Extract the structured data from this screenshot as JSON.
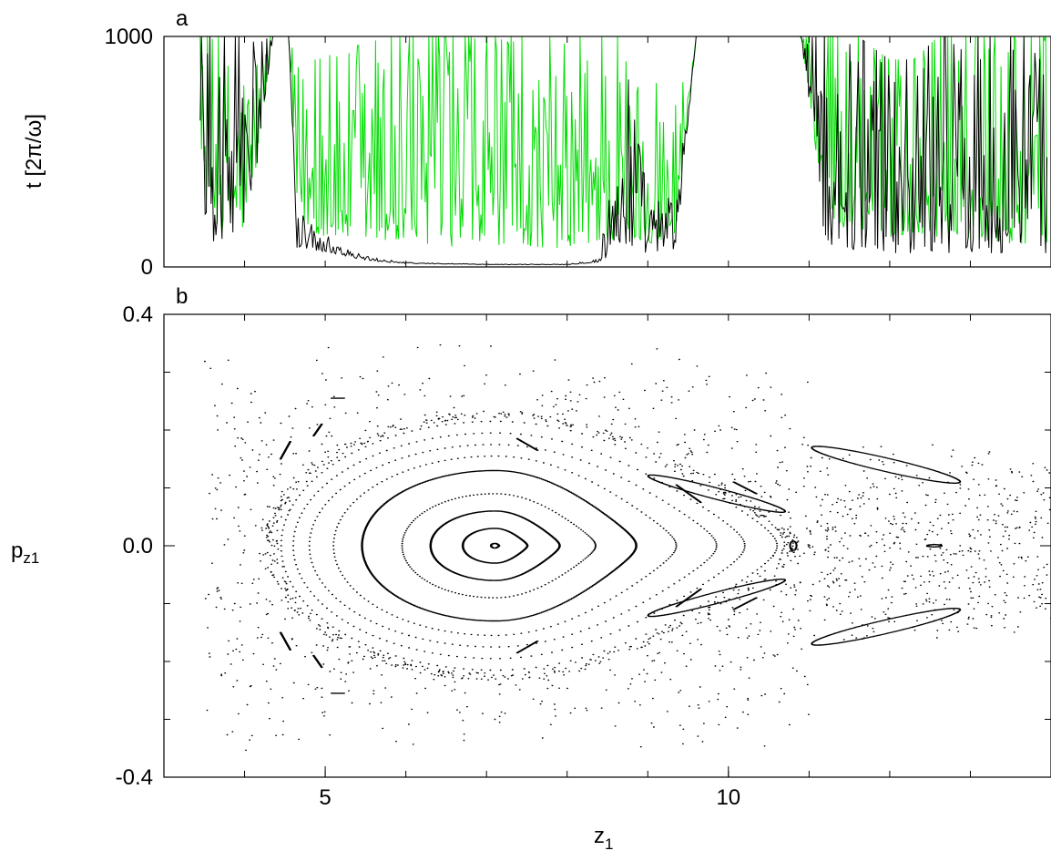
{
  "chart_data": [
    {
      "type": "line",
      "panel_label": "a",
      "title": "",
      "xlabel": "",
      "ylabel": "t [2π/ω]",
      "xlim": [
        3,
        14.0
      ],
      "ylim": [
        0,
        1000
      ],
      "y_ticks": [
        0,
        1000
      ],
      "x_ticks_minor": [
        4,
        5,
        6,
        7,
        8,
        9,
        10,
        11,
        12,
        13
      ],
      "grid": false,
      "legend": "none",
      "series": [
        {
          "color": "#00dd00",
          "envelope": [
            [
              3.45,
              350,
              1000
            ],
            [
              3.7,
              150,
              1000
            ],
            [
              3.9,
              150,
              1000
            ],
            [
              4.05,
              180,
              1000
            ],
            [
              4.35,
              1000,
              1000
            ],
            [
              4.55,
              1000,
              1000
            ],
            [
              4.65,
              220,
              900
            ],
            [
              4.9,
              140,
              900
            ],
            [
              5.3,
              120,
              950
            ],
            [
              5.8,
              100,
              1000
            ],
            [
              6.3,
              100,
              1000
            ],
            [
              6.8,
              80,
              1000
            ],
            [
              7.3,
              100,
              1000
            ],
            [
              7.8,
              80,
              1000
            ],
            [
              8.3,
              100,
              1000
            ],
            [
              8.65,
              120,
              1000
            ],
            [
              8.85,
              120,
              950
            ],
            [
              9.1,
              100,
              800
            ],
            [
              9.35,
              150,
              700
            ],
            [
              9.6,
              1000,
              1000
            ],
            [
              10.9,
              1000,
              1000
            ],
            [
              11.2,
              200,
              1000
            ],
            [
              11.6,
              150,
              1000
            ],
            [
              12.0,
              130,
              900
            ],
            [
              12.3,
              150,
              900
            ],
            [
              12.6,
              130,
              1000
            ],
            [
              13.0,
              120,
              1000
            ],
            [
              13.5,
              100,
              1000
            ],
            [
              13.95,
              100,
              1000
            ]
          ]
        },
        {
          "color": "#000000",
          "envelope": [
            [
              3.45,
              200,
              1000
            ],
            [
              3.7,
              60,
              1000
            ],
            [
              3.9,
              60,
              1000
            ],
            [
              4.05,
              150,
              1000
            ],
            [
              4.35,
              1000,
              1000
            ],
            [
              4.55,
              1000,
              1000
            ],
            [
              4.65,
              80,
              250
            ],
            [
              4.9,
              70,
              160
            ],
            [
              5.1,
              60,
              120
            ],
            [
              5.3,
              40,
              70
            ],
            [
              5.6,
              25,
              40
            ],
            [
              6.0,
              15,
              20
            ],
            [
              7.0,
              10,
              12
            ],
            [
              8.0,
              10,
              12
            ],
            [
              8.4,
              20,
              40
            ],
            [
              8.6,
              60,
              500
            ],
            [
              8.75,
              80,
              1000
            ],
            [
              9.0,
              60,
              300
            ],
            [
              9.35,
              60,
              300
            ],
            [
              9.6,
              1000,
              1000
            ],
            [
              10.9,
              1000,
              1000
            ],
            [
              11.2,
              100,
              1000
            ],
            [
              11.6,
              70,
              1000
            ],
            [
              12.0,
              60,
              900
            ],
            [
              12.3,
              60,
              900
            ],
            [
              12.6,
              60,
              1000
            ],
            [
              13.0,
              60,
              1000
            ],
            [
              13.5,
              60,
              1000
            ],
            [
              13.95,
              60,
              1000
            ]
          ]
        }
      ]
    },
    {
      "type": "scatter",
      "panel_label": "b",
      "title": "",
      "xlabel": "z₁",
      "ylabel": "pz1",
      "ylabel_main": "p",
      "ylabel_sub": "z1",
      "xlabel_main": "z",
      "xlabel_sub": "1",
      "xlim": [
        3,
        14.0
      ],
      "ylim": [
        -0.4,
        0.4
      ],
      "x_ticks": [
        5,
        10
      ],
      "x_ticks_minor": [
        4,
        5,
        6,
        7,
        8,
        9,
        10,
        11,
        12,
        13
      ],
      "y_ticks": [
        -0.4,
        0.0,
        0.4
      ],
      "y_ticks_minor": [
        -0.3,
        -0.2,
        -0.1,
        0.1,
        0.2,
        0.3
      ],
      "y_tick_labels": [
        "-0.4",
        "0.0",
        "0.4"
      ],
      "grid": false,
      "legend": "none",
      "center": [
        7.1,
        0.0
      ],
      "invariant_curves": [
        {
          "a": 0.05,
          "b": 0.05,
          "c": 0.004,
          "style": "solid"
        },
        {
          "a": 0.4,
          "b": 0.4,
          "c": 0.03,
          "style": "solid"
        },
        {
          "a": 0.8,
          "b": 0.8,
          "c": 0.06,
          "style": "solid"
        },
        {
          "a": 1.15,
          "b": 1.25,
          "c": 0.09,
          "style": "dotted"
        },
        {
          "a": 1.65,
          "b": 1.75,
          "c": 0.13,
          "style": "solid"
        },
        {
          "a": 2.0,
          "b": 2.25,
          "c": 0.155,
          "style": "dotted"
        },
        {
          "a": 2.3,
          "b": 2.75,
          "c": 0.175,
          "style": "dotted"
        },
        {
          "a": 2.5,
          "b": 3.1,
          "c": 0.195,
          "style": "dotted"
        },
        {
          "a": 2.65,
          "b": 3.5,
          "c": 0.215,
          "style": "dotted"
        }
      ],
      "small_islands": [
        {
          "x": 10.8,
          "y": 0.0,
          "rx": 0.04,
          "ry": 0.008
        },
        {
          "x": 12.55,
          "y": 0.0,
          "rx": 0.09,
          "ry": 0.002
        }
      ],
      "island_chain_segments": [
        [
          5.15,
          0.255,
          0.15,
          0.0
        ],
        [
          5.15,
          -0.255,
          0.15,
          0.0
        ],
        [
          4.5,
          0.165,
          0.12,
          0.03
        ],
        [
          4.5,
          -0.165,
          0.12,
          -0.03
        ],
        [
          4.9,
          0.2,
          0.1,
          0.02
        ],
        [
          4.9,
          -0.2,
          0.1,
          -0.02
        ],
        [
          7.5,
          0.175,
          0.25,
          -0.02
        ],
        [
          7.5,
          -0.175,
          0.25,
          0.02
        ],
        [
          9.5,
          0.09,
          0.3,
          -0.03
        ],
        [
          9.5,
          -0.09,
          0.3,
          0.03
        ],
        [
          10.2,
          0.1,
          0.28,
          -0.02
        ],
        [
          10.2,
          -0.1,
          0.28,
          0.02
        ]
      ],
      "elongated_islands": [
        {
          "x": 11.95,
          "y": 0.14,
          "rx": 0.92,
          "ry": 0.012,
          "tilt": -0.032
        },
        {
          "x": 11.95,
          "y": -0.14,
          "rx": 0.92,
          "ry": 0.012,
          "tilt": 0.032
        },
        {
          "x": 9.85,
          "y": 0.09,
          "rx": 0.85,
          "ry": 0.01,
          "tilt": -0.036
        },
        {
          "x": 9.85,
          "y": -0.09,
          "rx": 0.85,
          "ry": 0.01,
          "tilt": 0.036
        }
      ],
      "chaotic_sea": {
        "count": 1300,
        "xrange": [
          3.5,
          14.0
        ],
        "yrange": [
          -0.36,
          0.36
        ]
      }
    }
  ]
}
